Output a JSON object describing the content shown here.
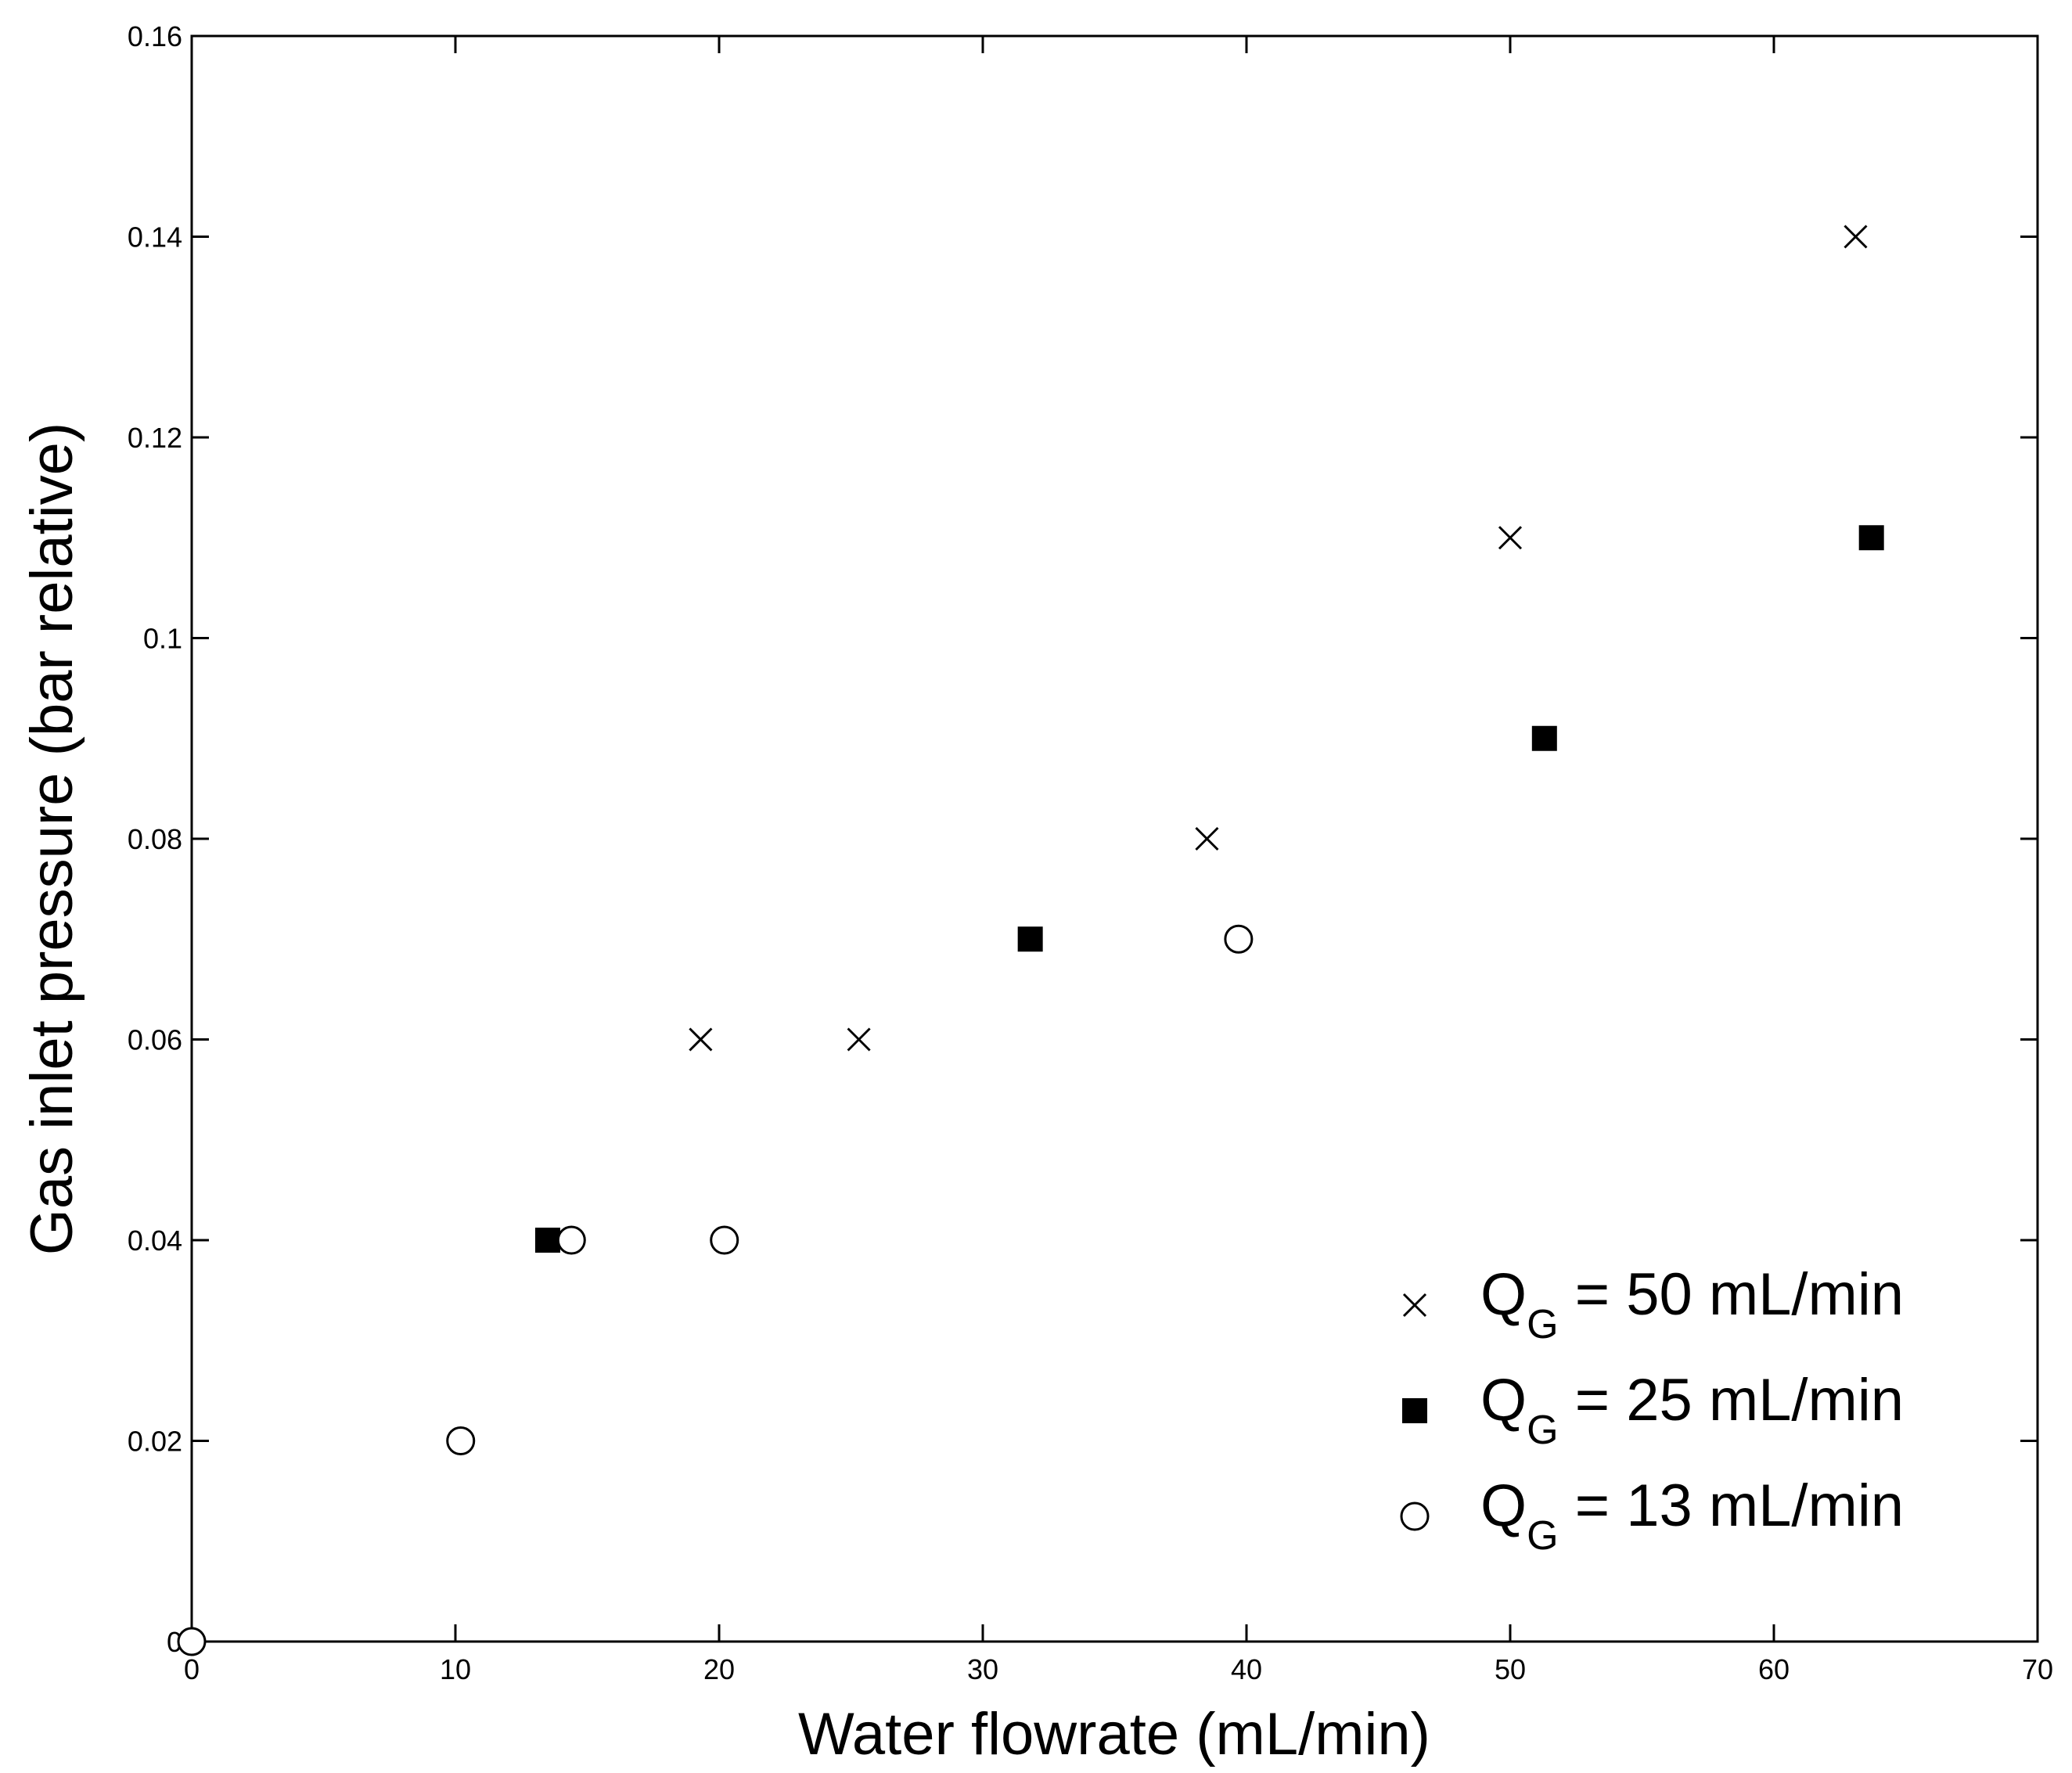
{
  "chart_data": {
    "type": "scatter",
    "title": "",
    "xlabel": "Water flowrate (mL/min)",
    "ylabel": "Gas inlet pressure (bar relative)",
    "xlim": [
      0,
      70
    ],
    "ylim": [
      0,
      0.16
    ],
    "x_ticks": [
      0,
      10,
      20,
      30,
      40,
      50,
      60,
      70
    ],
    "x_tick_labels": [
      "0",
      "10",
      "20",
      "30",
      "40",
      "50",
      "60",
      "70"
    ],
    "y_ticks": [
      0,
      0.02,
      0.04,
      0.06,
      0.08,
      0.1,
      0.12,
      0.14,
      0.16
    ],
    "y_tick_labels": [
      "0",
      "0.02",
      "0.04",
      "0.06",
      "0.08",
      "0.1",
      "0.12",
      "0.14",
      "0.16"
    ],
    "grid": false,
    "legend_position": "bottom-right",
    "series": [
      {
        "name": "Q_G = 50 mL/min",
        "legend_main": "Q",
        "legend_sub": "G",
        "legend_rest": " = 50 mL/min",
        "marker": "x",
        "x": [
          19.3,
          25.3,
          38.5,
          50.0,
          63.1
        ],
        "y": [
          0.06,
          0.06,
          0.08,
          0.11,
          0.14
        ]
      },
      {
        "name": "Q_G = 25 mL/min",
        "legend_main": "Q",
        "legend_sub": "G",
        "legend_rest": " = 25 mL/min",
        "marker": "square",
        "x": [
          13.5,
          31.8,
          51.3,
          63.7
        ],
        "y": [
          0.04,
          0.07,
          0.09,
          0.11
        ]
      },
      {
        "name": "Q_G = 13 mL/min",
        "legend_main": "Q",
        "legend_sub": "G",
        "legend_rest": " = 13 mL/min",
        "marker": "circle",
        "x": [
          0,
          10.2,
          14.4,
          20.2,
          39.7
        ],
        "y": [
          0,
          0.02,
          0.04,
          0.04,
          0.07
        ]
      }
    ]
  }
}
